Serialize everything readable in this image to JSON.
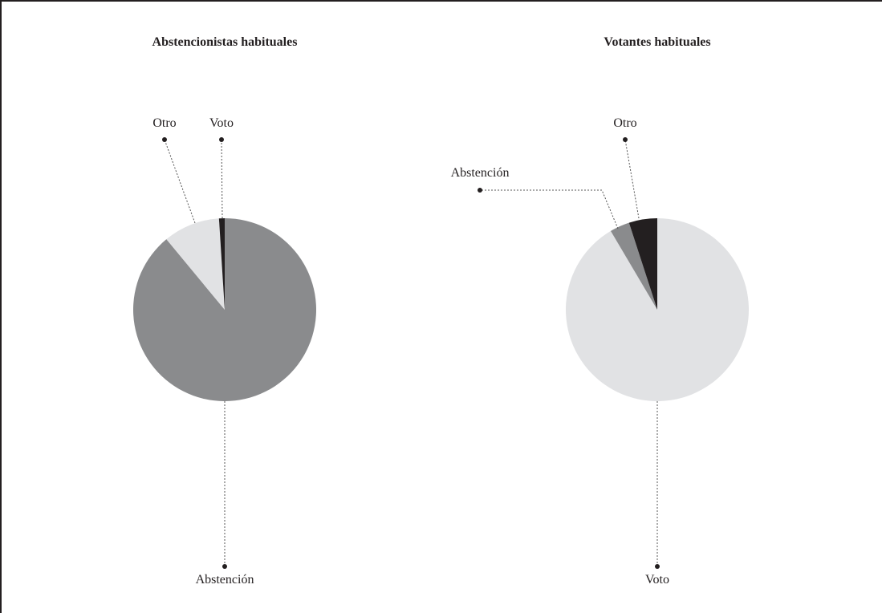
{
  "chart_data": [
    {
      "type": "pie",
      "title": "Abstencionistas habituales",
      "categories": [
        "Abstención",
        "Otro",
        "Voto"
      ],
      "values": [
        89,
        10,
        1
      ],
      "colors": [
        "#8a8b8d",
        "#e1e2e4",
        "#231f20"
      ]
    },
    {
      "type": "pie",
      "title": "Votantes habituales",
      "categories": [
        "Voto",
        "Abstención",
        "Otro"
      ],
      "values": [
        91.5,
        3.5,
        5
      ],
      "colors": [
        "#e1e2e4",
        "#8a8b8d",
        "#231f20"
      ]
    }
  ]
}
